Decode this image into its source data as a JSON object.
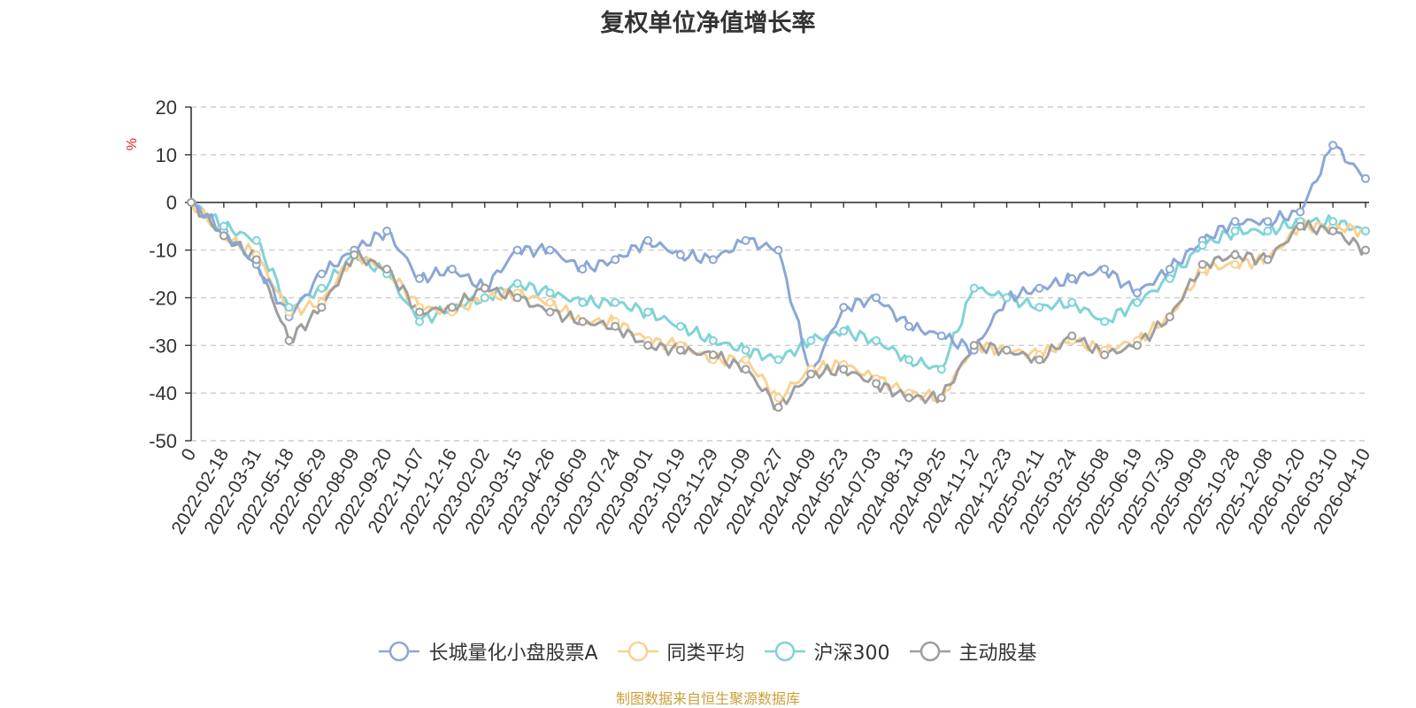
{
  "chart_data": {
    "type": "line",
    "title": "复权单位净值增长率",
    "ylabel": "%",
    "xlabel": "",
    "ylim": [
      -50,
      20
    ],
    "yticks": [
      20,
      10,
      0,
      -10,
      -20,
      -30,
      -40,
      -50
    ],
    "grid": true,
    "legend_position": "bottom-center",
    "categories": [
      "0",
      "2022-02-18",
      "2022-03-31",
      "2022-05-18",
      "2022-06-29",
      "2022-08-09",
      "2022-09-20",
      "2022-11-07",
      "2022-12-16",
      "2023-02-02",
      "2023-03-15",
      "2023-04-26",
      "2023-06-09",
      "2023-07-24",
      "2023-09-01",
      "2023-10-19",
      "2023-11-29",
      "2024-01-09",
      "2024-02-27",
      "2024-04-09",
      "2024-05-23",
      "2024-07-03",
      "2024-08-13",
      "2024-09-25",
      "2024-11-12",
      "2024-12-23",
      "2025-02-11",
      "2025-03-24",
      "2025-05-08",
      "2025-06-19",
      "2025-07-30",
      "2025-09-09",
      "2025-10-28",
      "2025-12-08",
      "2026-01-20",
      "2026-03-10",
      "2026-04-10"
    ],
    "series": [
      {
        "name": "长城量化小盘股票A",
        "color": "#8aa7d6",
        "values": [
          0,
          -6,
          -13,
          -24,
          -15,
          -10,
          -6,
          -16,
          -14,
          -18,
          -10,
          -10,
          -14,
          -12,
          -8,
          -11,
          -12,
          -8,
          -10,
          -36,
          -22,
          -20,
          -26,
          -28,
          -31,
          -20,
          -18,
          -16,
          -14,
          -19,
          -14,
          -8,
          -4,
          -4,
          -2,
          12,
          5
        ]
      },
      {
        "name": "同类平均",
        "color": "#f9d291",
        "values": [
          0,
          -7,
          -11,
          -23,
          -21,
          -11,
          -14,
          -22,
          -23,
          -20,
          -19,
          -21,
          -25,
          -25,
          -29,
          -30,
          -33,
          -33,
          -41,
          -35,
          -34,
          -37,
          -40,
          -41,
          -30,
          -31,
          -32,
          -29,
          -31,
          -29,
          -24,
          -14,
          -13,
          -12,
          -5,
          -5,
          -6
        ]
      },
      {
        "name": "沪深300",
        "color": "#7fd3d6",
        "values": [
          0,
          -5,
          -8,
          -22,
          -18,
          -11,
          -15,
          -25,
          -22,
          -20,
          -17,
          -19,
          -21,
          -21,
          -23,
          -26,
          -29,
          -31,
          -33,
          -29,
          -27,
          -29,
          -33,
          -35,
          -18,
          -20,
          -22,
          -21,
          -25,
          -21,
          -16,
          -9,
          -6,
          -6,
          -4,
          -4,
          -6
        ]
      },
      {
        "name": "主动股基",
        "color": "#9e9e9e",
        "values": [
          0,
          -7,
          -12,
          -29,
          -22,
          -11,
          -14,
          -23,
          -22,
          -18,
          -20,
          -23,
          -25,
          -26,
          -30,
          -31,
          -32,
          -35,
          -43,
          -36,
          -35,
          -38,
          -41,
          -41,
          -30,
          -31,
          -33,
          -28,
          -32,
          -30,
          -24,
          -13,
          -11,
          -12,
          -5,
          -6,
          -10
        ]
      }
    ]
  },
  "source_note": "制图数据来自恒生聚源数据库"
}
